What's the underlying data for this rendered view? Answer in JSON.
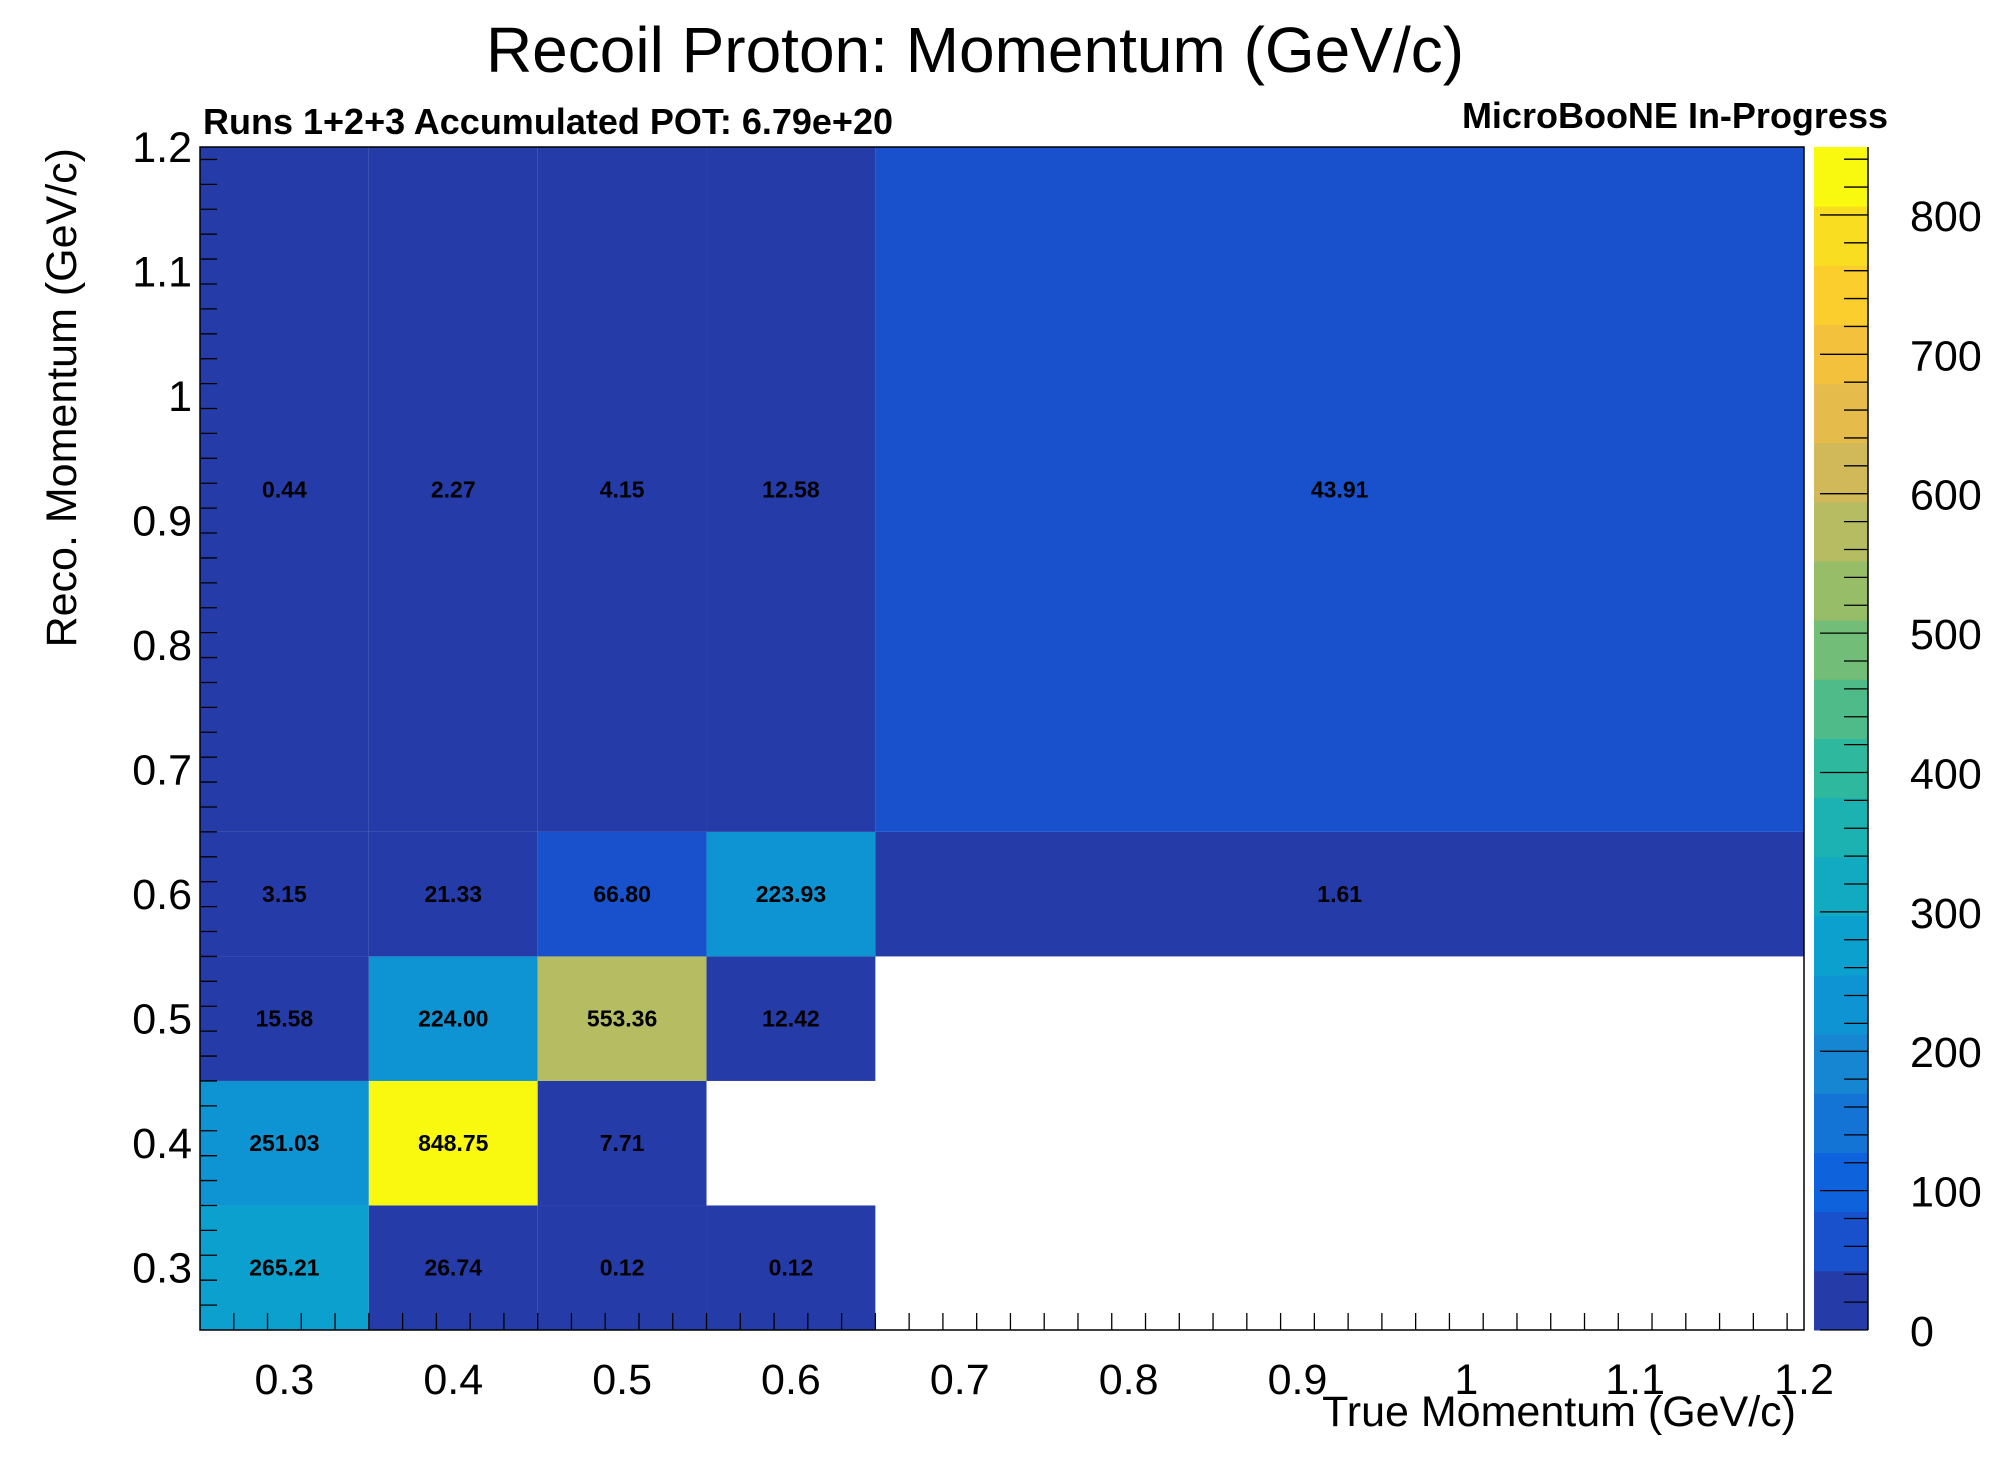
{
  "title": "Recoil Proton: Momentum (GeV/c)",
  "subtitle_left": "Runs 1+2+3 Accumulated POT: 6.79e+20",
  "subtitle_right": "MicroBooNE In-Progress",
  "chart_data": {
    "type": "heatmap",
    "xlabel": "True Momentum (GeV/c)",
    "ylabel": "Reco. Momentum (GeV/c)",
    "xlim": [
      0.25,
      1.2
    ],
    "ylim": [
      0.25,
      1.2
    ],
    "x_ticks": [
      "0.3",
      "0.4",
      "0.5",
      "0.6",
      "0.7",
      "0.8",
      "0.9",
      "1",
      "1.1",
      "1.2"
    ],
    "y_ticks": [
      "0.3",
      "0.4",
      "0.5",
      "0.6",
      "0.7",
      "0.8",
      "0.9",
      "1",
      "1.1",
      "1.2"
    ],
    "x_bin_edges": [
      0.25,
      0.35,
      0.45,
      0.55,
      0.65,
      1.2
    ],
    "y_bin_edges": [
      0.25,
      0.35,
      0.45,
      0.55,
      0.65,
      1.2
    ],
    "values": [
      [
        265.21,
        26.74,
        0.12,
        0.12,
        null
      ],
      [
        251.03,
        848.75,
        7.71,
        null,
        null
      ],
      [
        15.58,
        224.0,
        553.36,
        12.42,
        null
      ],
      [
        3.15,
        21.33,
        66.8,
        223.93,
        1.61
      ],
      [
        0.44,
        2.27,
        4.15,
        12.58,
        43.91
      ]
    ],
    "cell_labels": [
      [
        "265.21",
        "26.74",
        "0.12",
        "0.12",
        ""
      ],
      [
        "251.03",
        "848.75",
        "7.71",
        "",
        ""
      ],
      [
        "15.58",
        "224.00",
        "553.36",
        "12.42",
        ""
      ],
      [
        "3.15",
        "21.33",
        "66.80",
        "223.93",
        "1.61"
      ],
      [
        "0.44",
        "2.27",
        "4.15",
        "12.58",
        "43.91"
      ]
    ],
    "z_range": [
      0,
      848.75
    ],
    "colorbar_ticks": [
      0,
      100,
      200,
      300,
      400,
      500,
      600,
      700,
      800
    ],
    "colorbar_tick_labels": [
      "0",
      "100",
      "200",
      "300",
      "400",
      "500",
      "600",
      "700",
      "800"
    ],
    "palette": [
      "#253ca8",
      "#1851cb",
      "#0e63dc",
      "#1474d6",
      "#1685d2",
      "#0f94d3",
      "#0ca0ce",
      "#11aac0",
      "#1cb2b1",
      "#2eb89e",
      "#4fbb88",
      "#72bd77",
      "#97bd69",
      "#b5bc62",
      "#d1b95a",
      "#e5bb4c",
      "#f4c13d",
      "#fbcd2d",
      "#f9dd21",
      "#f9f90f"
    ]
  }
}
